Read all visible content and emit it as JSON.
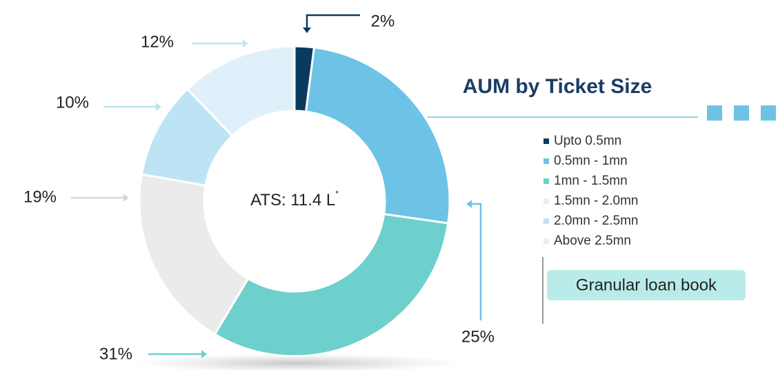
{
  "chart_data": {
    "type": "donut",
    "title": "AUM by Ticket Size",
    "center_label": "ATS: 11.4 L",
    "center_label_marker": "*",
    "annotation": "Granular loan book",
    "categories": [
      "Upto 0.5mn",
      "0.5mn - 1mn",
      "1mn - 1.5mn",
      "1.5mn - 2.0mn",
      "2.0mn - 2.5mn",
      "Above 2.5mn"
    ],
    "values": [
      2,
      25,
      31,
      19,
      10,
      12
    ],
    "value_labels": [
      "2%",
      "25%",
      "31%",
      "19%",
      "10%",
      "12%"
    ],
    "colors": [
      "#0b3a5f",
      "#6cc3e6",
      "#6dd0cc",
      "#ebebeb",
      "#bde4f4",
      "#dff0fa"
    ],
    "legend": "right"
  }
}
